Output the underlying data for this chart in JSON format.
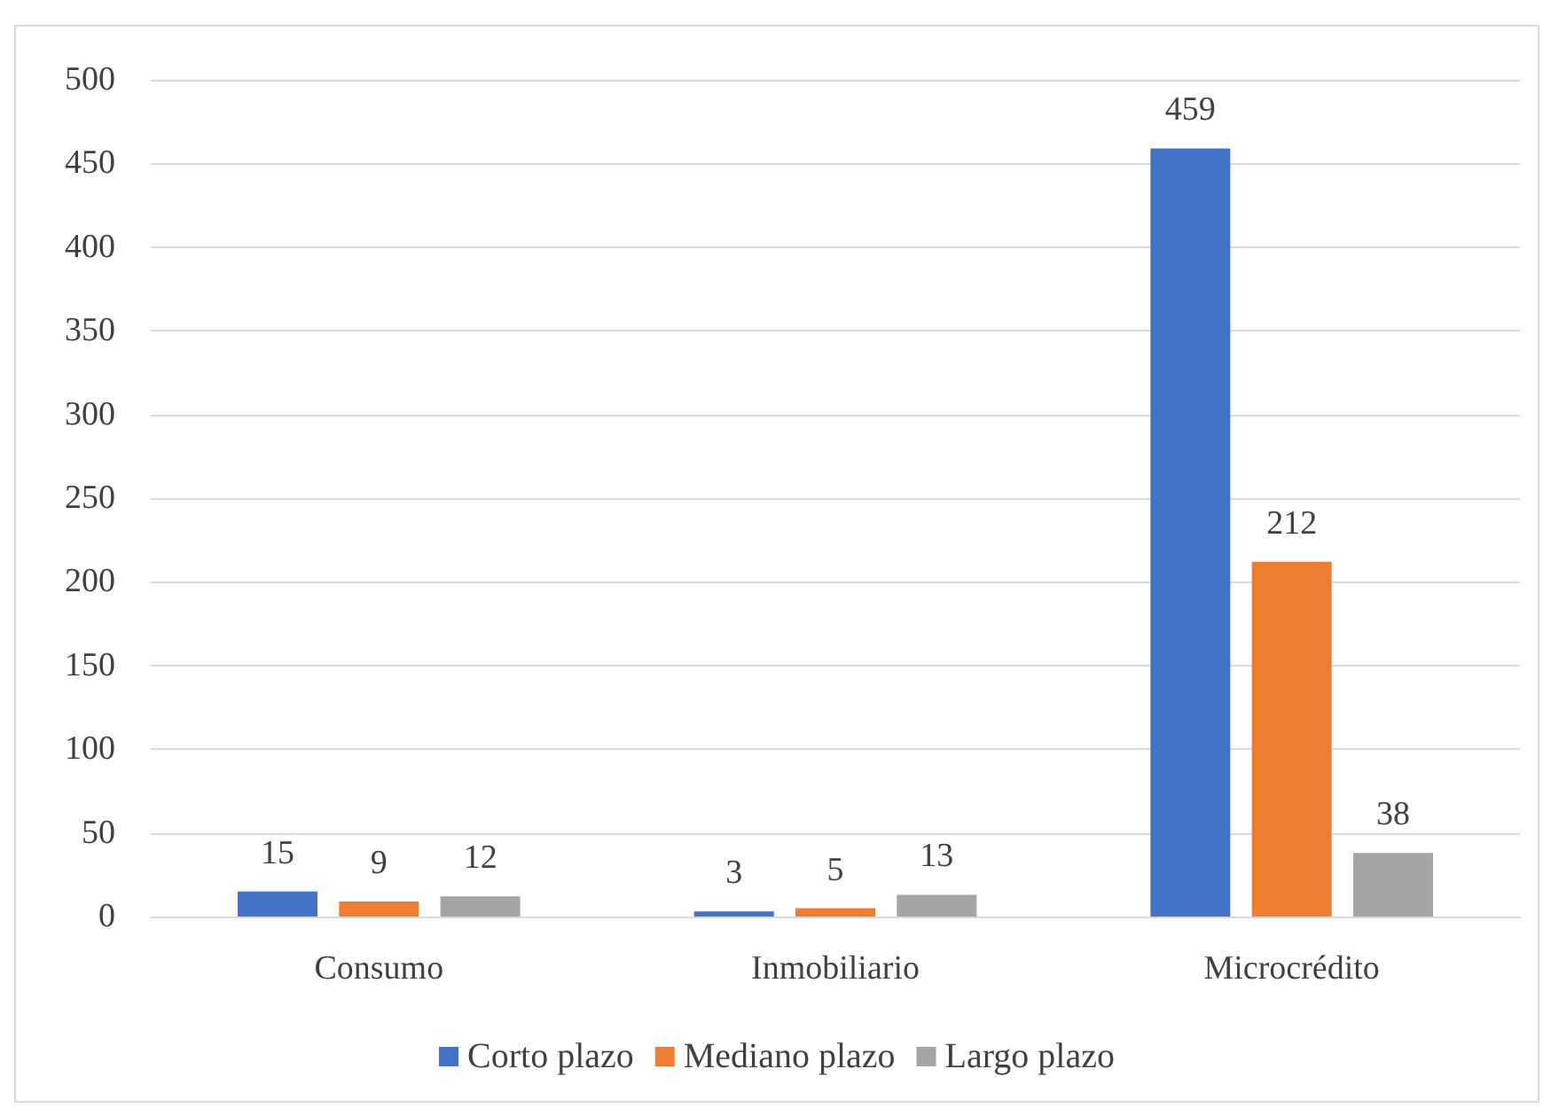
{
  "chart_data": {
    "type": "bar",
    "categories": [
      "Consumo",
      "Inmobiliario",
      "Microcrédito"
    ],
    "series": [
      {
        "name": "Corto plazo",
        "color": "#4472c4",
        "values": [
          15,
          3,
          459
        ]
      },
      {
        "name": "Mediano plazo",
        "color": "#ed7d31",
        "values": [
          9,
          5,
          212
        ]
      },
      {
        "name": "Largo plazo",
        "color": "#a5a5a5",
        "values": [
          12,
          13,
          38
        ]
      }
    ],
    "ylim": [
      0,
      500
    ],
    "yticks": [
      0,
      50,
      100,
      150,
      200,
      250,
      300,
      350,
      400,
      450,
      500
    ],
    "grid": "y",
    "legend": "bottom",
    "data_labels": true
  }
}
